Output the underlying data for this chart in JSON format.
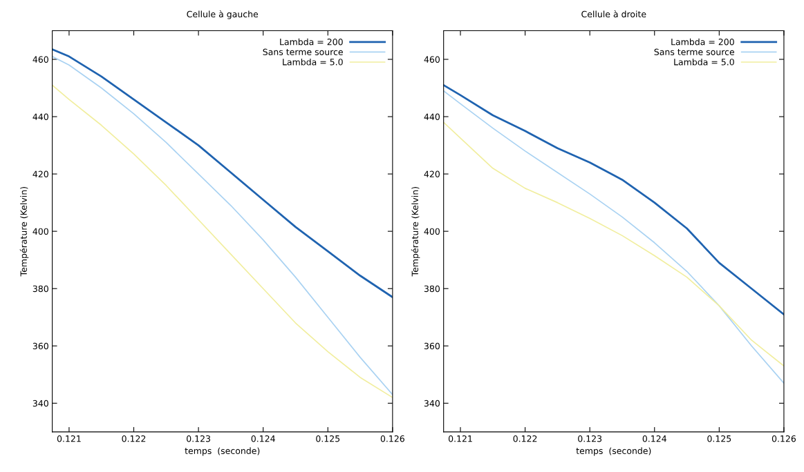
{
  "chart_data": [
    {
      "type": "line",
      "title": "Cellule à gauche",
      "xlabel": "temps  (seconde)",
      "ylabel": "Température (Kelvin)",
      "xlim": [
        0.12074,
        0.126
      ],
      "xticks": [
        0.121,
        0.122,
        0.123,
        0.124,
        0.125,
        0.126
      ],
      "ylim": [
        330,
        470
      ],
      "yticks": [
        340,
        360,
        380,
        400,
        420,
        440,
        460
      ],
      "grid": false,
      "legend": "top right",
      "marker": "none",
      "line_style": "solid",
      "series": [
        {
          "name": "Lambda = 200",
          "color": "#1f63b0",
          "x": [
            0.12074,
            0.121,
            0.1215,
            0.122,
            0.1225,
            0.123,
            0.1235,
            0.124,
            0.1245,
            0.125,
            0.1255,
            0.126
          ],
          "values": [
            463.5,
            461,
            454,
            446,
            438,
            430,
            420.5,
            411,
            401.5,
            393,
            384.5,
            377
          ]
        },
        {
          "name": "Sans terme source",
          "color": "#a9d2f2",
          "x": [
            0.12074,
            0.121,
            0.1215,
            0.122,
            0.1225,
            0.123,
            0.1235,
            0.124,
            0.1245,
            0.125,
            0.1255,
            0.126
          ],
          "values": [
            461,
            458,
            450,
            441,
            431,
            420,
            409,
            397,
            384,
            370,
            356,
            343
          ]
        },
        {
          "name": "Lambda = 5.0",
          "color": "#f1ee9e",
          "x": [
            0.12074,
            0.121,
            0.1215,
            0.122,
            0.1225,
            0.123,
            0.1235,
            0.124,
            0.1245,
            0.125,
            0.1255,
            0.126
          ],
          "values": [
            451,
            446,
            437,
            427,
            416,
            404,
            392,
            380,
            368,
            358,
            349,
            342
          ]
        }
      ]
    },
    {
      "type": "line",
      "title": "Cellule à droite",
      "xlabel": "temps  (seconde)",
      "ylabel": "Température (Kelvin)",
      "xlim": [
        0.12074,
        0.126
      ],
      "xticks": [
        0.121,
        0.122,
        0.123,
        0.124,
        0.125,
        0.126
      ],
      "ylim": [
        330,
        470
      ],
      "yticks": [
        340,
        360,
        380,
        400,
        420,
        440,
        460
      ],
      "grid": false,
      "legend": "top right",
      "marker": "none",
      "line_style": "solid",
      "series": [
        {
          "name": "Lambda = 200",
          "color": "#1f63b0",
          "x": [
            0.12074,
            0.121,
            0.1215,
            0.122,
            0.1225,
            0.123,
            0.1235,
            0.124,
            0.1245,
            0.125,
            0.1255,
            0.126
          ],
          "values": [
            451,
            447.5,
            440.5,
            435,
            429,
            424,
            418,
            410,
            401,
            389,
            380,
            371
          ]
        },
        {
          "name": "Sans terme source",
          "color": "#a9d2f2",
          "x": [
            0.12074,
            0.121,
            0.1215,
            0.122,
            0.1225,
            0.123,
            0.1235,
            0.124,
            0.1245,
            0.125,
            0.1255,
            0.126
          ],
          "values": [
            449,
            444.5,
            436,
            428,
            420.5,
            413,
            405,
            396,
            386,
            374,
            360,
            347
          ]
        },
        {
          "name": "Lambda = 5.0",
          "color": "#f1ee9e",
          "x": [
            0.12074,
            0.121,
            0.1215,
            0.122,
            0.1225,
            0.123,
            0.1235,
            0.124,
            0.1245,
            0.125,
            0.1255,
            0.126
          ],
          "values": [
            438,
            432.5,
            422,
            415,
            410,
            404.5,
            398.5,
            391.5,
            384,
            374,
            362,
            353
          ]
        }
      ]
    }
  ]
}
